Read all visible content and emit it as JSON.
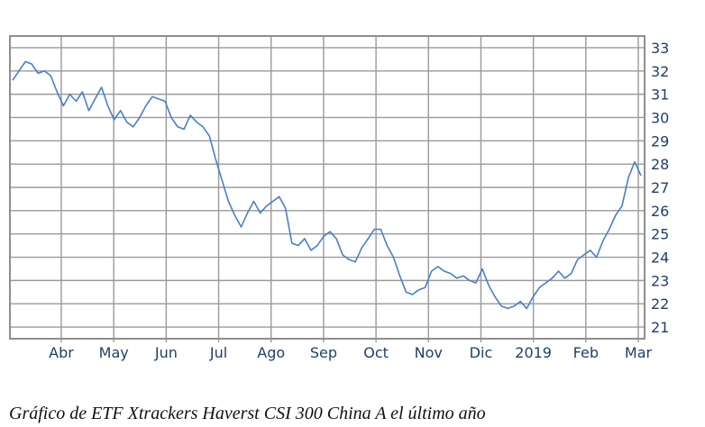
{
  "caption": "Gráfico de ETF Xtrackers Haverst CSI 300 China A el último año",
  "colors": {
    "line": "#4a7fc8",
    "grid": "#9a9a9a",
    "frame": "#8f8f8f",
    "tick_text": "#1f3f6b"
  },
  "chart_data": {
    "type": "line",
    "title": "",
    "xlabel": "",
    "ylabel": "",
    "ylim": [
      20.5,
      33.5
    ],
    "y_ticks": [
      21,
      22,
      23,
      24,
      25,
      26,
      27,
      28,
      29,
      30,
      31,
      32,
      33
    ],
    "x_ticks": [
      "Abr",
      "May",
      "Jun",
      "Jul",
      "Ago",
      "Sep",
      "Oct",
      "Nov",
      "Dic",
      "2019",
      "Feb",
      "Mar"
    ],
    "grid": true,
    "series": [
      {
        "values": [
          31.6,
          32.0,
          32.4,
          32.3,
          31.9,
          32.0,
          31.8,
          31.1,
          30.5,
          31.0,
          30.7,
          31.1,
          30.3,
          30.8,
          31.3,
          30.5,
          29.9,
          30.3,
          29.8,
          29.6,
          30.0,
          30.5,
          30.9,
          30.8,
          30.7,
          30.0,
          29.6,
          29.5,
          30.1,
          29.8,
          29.6,
          29.2,
          28.2,
          27.3,
          26.4,
          25.8,
          25.3,
          25.9,
          26.4,
          25.9,
          26.2,
          26.4,
          26.6,
          26.1,
          24.6,
          24.5,
          24.8,
          24.3,
          24.5,
          24.9,
          25.1,
          24.8,
          24.1,
          23.9,
          23.8,
          24.4,
          24.8,
          25.2,
          25.2,
          24.5,
          24.0,
          23.2,
          22.5,
          22.4,
          22.6,
          22.7,
          23.4,
          23.6,
          23.4,
          23.3,
          23.1,
          23.2,
          23.0,
          22.9,
          23.5,
          22.8,
          22.3,
          21.9,
          21.8,
          21.9,
          22.1,
          21.8,
          22.3,
          22.7,
          22.9,
          23.1,
          23.4,
          23.1,
          23.3,
          23.9,
          24.1,
          24.3,
          24.0,
          24.7,
          25.2,
          25.8,
          26.2,
          27.4,
          28.1,
          27.5
        ]
      }
    ]
  }
}
